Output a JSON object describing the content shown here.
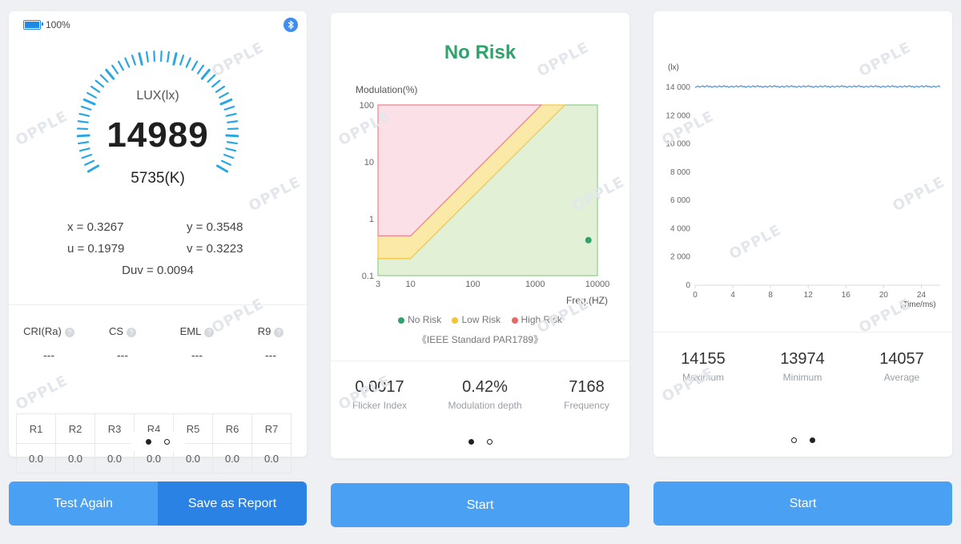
{
  "left": {
    "battery": "100%",
    "gauge": {
      "label": "LUX(lx)",
      "value": "14989",
      "cct": "5735(K)"
    },
    "coords": {
      "x": "x = 0.3267",
      "y": "y = 0.3548",
      "u": "u = 0.1979",
      "v": "v = 0.3223",
      "duv": "Duv = 0.0094"
    },
    "metrics": [
      {
        "label": "CRI(Ra)",
        "value": "---"
      },
      {
        "label": "CS",
        "value": "---"
      },
      {
        "label": "EML",
        "value": "---"
      },
      {
        "label": "R9",
        "value": "---"
      }
    ],
    "help_glyph": "?",
    "r_headers": [
      "R1",
      "R2",
      "R3",
      "R4",
      "R5",
      "R6",
      "R7"
    ],
    "r_values": [
      "0.0",
      "0.0",
      "0.0",
      "0.0",
      "0.0",
      "0.0",
      "0.0"
    ],
    "btn_test_again": "Test Again",
    "btn_save": "Save as Report"
  },
  "middle": {
    "status": "No Risk",
    "status_color": "#2fa36b",
    "ylabel": "Modulation(%)",
    "xlabel": "Freq.(HZ)",
    "yticks": [
      "100",
      "10",
      "1",
      "0.1"
    ],
    "xticks": [
      "3",
      "10",
      "100",
      "1000",
      "10000"
    ],
    "legend": [
      {
        "label": "No Risk",
        "color": "#2fa36b"
      },
      {
        "label": "Low Risk",
        "color": "#f5c431"
      },
      {
        "label": "High Risk",
        "color": "#e8686a"
      }
    ],
    "standard": "《IEEE Standard PAR1789》",
    "stats": [
      {
        "value": "0.0017",
        "label": "Flicker Index"
      },
      {
        "value": "0.42%",
        "label": "Modulation depth"
      },
      {
        "value": "7168",
        "label": "Frequency"
      }
    ],
    "btn_start": "Start"
  },
  "right": {
    "yunit": "(lx)",
    "xunit": "(Time/ms)",
    "yticks": [
      "14 000",
      "12 000",
      "10 000",
      "8 000",
      "6 000",
      "4 000",
      "2 000",
      "0"
    ],
    "xticks": [
      "0",
      "4",
      "8",
      "12",
      "16",
      "20",
      "24"
    ],
    "stats": [
      {
        "value": "14155",
        "label": "Maximum"
      },
      {
        "value": "13974",
        "label": "Minimum"
      },
      {
        "value": "14057",
        "label": "Average"
      }
    ],
    "btn_start": "Start"
  },
  "watermark": "OPPLE",
  "chart_data": [
    {
      "type": "scatter",
      "title": "No Risk",
      "xlabel": "Freq.(HZ)",
      "ylabel": "Modulation(%)",
      "x_scale": "log",
      "y_scale": "log",
      "xlim": [
        3,
        10000
      ],
      "ylim": [
        0.1,
        100
      ],
      "legend": [
        "No Risk",
        "Low Risk",
        "High Risk"
      ],
      "points": [
        {
          "x": 7168,
          "y": 0.42
        }
      ]
    },
    {
      "type": "line",
      "xlabel": "(Time/ms)",
      "ylabel": "(lx)",
      "xlim": [
        0,
        26
      ],
      "ylim": [
        0,
        14000
      ],
      "series": [
        {
          "x": [
            0,
            26
          ],
          "values": [
            14057,
            14057
          ]
        }
      ]
    }
  ]
}
